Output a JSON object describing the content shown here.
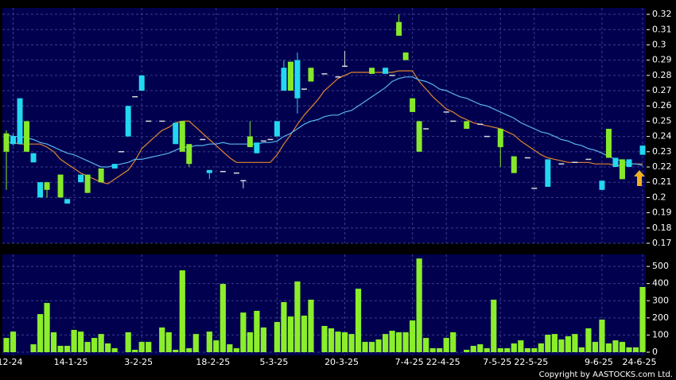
{
  "chart_data": [
    {
      "type": "candlestick",
      "categories": [
        null,
        "12-24",
        null,
        null,
        null,
        null,
        null,
        null,
        null,
        null,
        "14-1-25",
        null,
        null,
        null,
        null,
        null,
        null,
        null,
        null,
        null,
        "3-2-25",
        null,
        null,
        null,
        null,
        null,
        null,
        null,
        null,
        null,
        null,
        "18-2-25",
        null,
        null,
        null,
        null,
        null,
        null,
        null,
        null,
        "5-3-25",
        null,
        null,
        null,
        null,
        null,
        null,
        null,
        null,
        null,
        "20-3-25",
        null,
        null,
        null,
        null,
        null,
        null,
        null,
        null,
        null,
        "7-4-25",
        null,
        null,
        null,
        null,
        "22-4-25",
        null,
        null,
        null,
        null,
        null,
        null,
        null,
        "7-5-25",
        null,
        null,
        null,
        null,
        "22-5-25",
        null,
        null,
        null,
        null,
        null,
        null,
        null,
        null,
        null,
        "9-6-25",
        null,
        null,
        null,
        null,
        null,
        "24-6-25"
      ],
      "open": [
        0.242,
        0.235,
        0.235,
        0.25,
        0.223,
        0.2,
        0.21,
        null,
        0.215,
        0.196,
        null,
        0.21,
        0.215,
        null,
        0.219,
        null,
        0.219,
        0.23,
        0.24,
        0.266,
        0.27,
        0.25,
        null,
        0.25,
        null,
        0.235,
        0.25,
        0.235,
        null,
        0.238,
        0.216,
        null,
        0.217,
        null,
        0.216,
        0.211,
        0.24,
        0.229,
        0.237,
        0.238,
        0.24,
        0.27,
        0.289,
        0.265,
        0.271,
        0.285,
        null,
        0.281,
        null,
        0.279,
        0.286,
        null,
        null,
        null,
        0.285,
        null,
        0.281,
        0.28,
        0.315,
        0.295,
        0.265,
        0.25,
        0.245,
        null,
        null,
        0.256,
        0.25,
        null,
        0.25,
        null,
        0.248,
        0.24,
        null,
        0.245,
        null,
        0.227,
        null,
        0.226,
        0.206,
        null,
        0.207,
        null,
        0.222,
        null,
        0.223,
        null,
        0.225,
        null,
        0.205,
        0.245,
        0.22,
        0.225,
        0.22,
        null,
        0.228
      ],
      "high": [
        0.244,
        0.242,
        0.265,
        0.25,
        0.229,
        0.21,
        0.21,
        null,
        0.215,
        0.199,
        null,
        0.215,
        0.215,
        null,
        0.219,
        null,
        0.222,
        0.23,
        0.26,
        0.266,
        0.28,
        0.25,
        null,
        0.25,
        null,
        0.249,
        0.25,
        0.235,
        null,
        0.238,
        0.218,
        null,
        0.217,
        null,
        0.216,
        0.211,
        0.25,
        0.236,
        0.237,
        0.238,
        0.25,
        0.29,
        0.289,
        0.295,
        0.271,
        0.285,
        null,
        0.281,
        null,
        0.279,
        0.296,
        null,
        null,
        null,
        0.285,
        null,
        0.285,
        0.28,
        0.32,
        0.295,
        0.265,
        0.25,
        0.245,
        null,
        null,
        0.256,
        0.25,
        null,
        0.25,
        null,
        0.248,
        0.24,
        null,
        0.245,
        null,
        0.227,
        null,
        0.226,
        0.206,
        null,
        0.225,
        null,
        0.222,
        null,
        0.223,
        null,
        0.225,
        null,
        0.211,
        0.245,
        0.226,
        0.225,
        0.225,
        null,
        0.234
      ],
      "low": [
        0.205,
        0.234,
        0.235,
        0.23,
        0.223,
        0.2,
        0.2,
        null,
        0.2,
        0.196,
        null,
        0.21,
        0.203,
        null,
        0.21,
        null,
        0.219,
        0.23,
        0.24,
        0.266,
        0.27,
        0.25,
        null,
        0.25,
        null,
        0.235,
        0.23,
        0.22,
        null,
        0.238,
        0.212,
        null,
        0.217,
        null,
        0.216,
        0.206,
        0.233,
        0.229,
        0.237,
        0.238,
        0.24,
        0.27,
        0.27,
        0.255,
        0.271,
        0.276,
        null,
        0.281,
        null,
        0.279,
        0.286,
        null,
        null,
        null,
        0.281,
        null,
        0.281,
        0.28,
        0.306,
        0.29,
        0.256,
        0.23,
        0.245,
        null,
        null,
        0.256,
        0.25,
        null,
        0.245,
        null,
        0.248,
        0.24,
        null,
        0.22,
        null,
        0.216,
        null,
        0.226,
        0.206,
        null,
        0.207,
        null,
        0.222,
        null,
        0.223,
        null,
        0.225,
        null,
        0.205,
        0.226,
        0.22,
        0.212,
        0.22,
        null,
        0.228
      ],
      "close": [
        0.23,
        0.24,
        0.265,
        0.23,
        0.229,
        0.21,
        0.205,
        null,
        0.2,
        0.199,
        null,
        0.215,
        0.203,
        null,
        0.21,
        null,
        0.222,
        0.23,
        0.26,
        0.266,
        0.28,
        0.25,
        null,
        0.25,
        null,
        0.249,
        0.23,
        0.222,
        null,
        0.238,
        0.218,
        null,
        0.217,
        null,
        0.216,
        0.211,
        0.233,
        0.236,
        0.237,
        0.238,
        0.25,
        0.285,
        0.27,
        0.29,
        0.271,
        0.276,
        null,
        0.281,
        null,
        0.279,
        0.286,
        null,
        null,
        null,
        0.281,
        null,
        0.285,
        0.28,
        0.306,
        0.29,
        0.256,
        0.23,
        0.245,
        null,
        null,
        0.256,
        0.25,
        null,
        0.245,
        null,
        0.248,
        0.24,
        null,
        0.233,
        null,
        0.216,
        null,
        0.226,
        0.206,
        null,
        0.225,
        null,
        0.222,
        null,
        0.223,
        null,
        0.225,
        null,
        0.211,
        0.226,
        0.226,
        0.212,
        0.225,
        null,
        0.234
      ],
      "up_color": "#22d8f0",
      "down_color": "#86e82a",
      "flat_color": "#dcdcdc",
      "series": [
        {
          "color": "#e0872c",
          "values": [
            0.236,
            0.236,
            0.235,
            0.235,
            0.235,
            0.235,
            0.233,
            0.23,
            0.225,
            0.222,
            0.219,
            0.216,
            0.214,
            0.212,
            0.21,
            0.209,
            0.212,
            0.215,
            0.218,
            0.224,
            0.232,
            0.236,
            0.24,
            0.244,
            0.246,
            0.249,
            0.25,
            0.25,
            0.246,
            0.242,
            0.238,
            0.234,
            0.23,
            0.226,
            0.223,
            0.223,
            0.223,
            0.223,
            0.223,
            0.223,
            0.228,
            0.235,
            0.241,
            0.248,
            0.254,
            0.259,
            0.264,
            0.27,
            0.274,
            0.278,
            0.28,
            0.282,
            0.282,
            0.282,
            0.282,
            0.282,
            0.282,
            0.282,
            0.283,
            0.283,
            0.283,
            0.276,
            0.271,
            0.266,
            0.262,
            0.258,
            0.256,
            0.253,
            0.251,
            0.249,
            0.248,
            0.247,
            0.246,
            0.245,
            0.243,
            0.241,
            0.237,
            0.234,
            0.231,
            0.228,
            0.226,
            0.225,
            0.224,
            0.223,
            0.223,
            0.223,
            0.223,
            0.222,
            0.222,
            0.222,
            0.221,
            0.221,
            0.222,
            0.222,
            0.222
          ]
        },
        {
          "color": "#5ab4ee",
          "values": [
            0.241,
            0.24,
            0.24,
            0.239,
            0.238,
            0.236,
            0.235,
            0.233,
            0.231,
            0.229,
            0.228,
            0.226,
            0.224,
            0.222,
            0.22,
            0.22,
            0.221,
            0.222,
            0.223,
            0.225,
            0.225,
            0.226,
            0.227,
            0.228,
            0.229,
            0.231,
            0.233,
            0.233,
            0.234,
            0.234,
            0.235,
            0.235,
            0.236,
            0.235,
            0.235,
            0.235,
            0.235,
            0.235,
            0.236,
            0.236,
            0.237,
            0.24,
            0.242,
            0.245,
            0.248,
            0.25,
            0.251,
            0.253,
            0.254,
            0.254,
            0.256,
            0.257,
            0.26,
            0.263,
            0.266,
            0.269,
            0.272,
            0.276,
            0.278,
            0.279,
            0.279,
            0.277,
            0.276,
            0.274,
            0.271,
            0.27,
            0.268,
            0.266,
            0.265,
            0.263,
            0.261,
            0.26,
            0.258,
            0.256,
            0.254,
            0.252,
            0.249,
            0.247,
            0.245,
            0.243,
            0.242,
            0.24,
            0.238,
            0.237,
            0.235,
            0.234,
            0.232,
            0.231,
            0.229,
            0.227,
            0.225,
            0.224,
            0.222,
            0.222,
            0.221
          ]
        }
      ],
      "ylim": [
        0.17,
        0.3242
      ],
      "yticks": [
        0.17,
        0.18,
        0.19,
        0.2,
        0.21,
        0.22,
        0.23,
        0.24,
        0.25,
        0.26,
        0.27,
        0.28,
        0.29,
        0.3,
        0.31,
        0.32
      ],
      "grid": true
    },
    {
      "type": "bar",
      "color": "#8cee2a",
      "values": [
        83,
        120,
        null,
        null,
        46,
        222,
        287,
        116,
        37,
        37,
        130,
        120,
        60,
        83,
        106,
        51,
        23,
        null,
        116,
        14,
        60,
        60,
        null,
        144,
        116,
        14,
        477,
        23,
        106,
        null,
        120,
        69,
        398,
        46,
        23,
        231,
        116,
        241,
        144,
        null,
        176,
        292,
        208,
        412,
        213,
        306,
        null,
        153,
        139,
        120,
        116,
        106,
        370,
        60,
        60,
        74,
        106,
        125,
        116,
        116,
        185,
        546,
        83,
        23,
        23,
        83,
        116,
        null,
        14,
        37,
        46,
        23,
        306,
        23,
        23,
        51,
        69,
        23,
        23,
        51,
        102,
        106,
        74,
        93,
        106,
        28,
        139,
        60,
        190,
        51,
        69,
        60,
        28,
        28,
        380
      ],
      "ylim": [
        0,
        570
      ],
      "yticks": [
        0,
        100,
        200,
        300,
        400,
        500
      ],
      "grid": true
    }
  ],
  "copyright": "Copyright by AASTOCKS.com Ltd."
}
